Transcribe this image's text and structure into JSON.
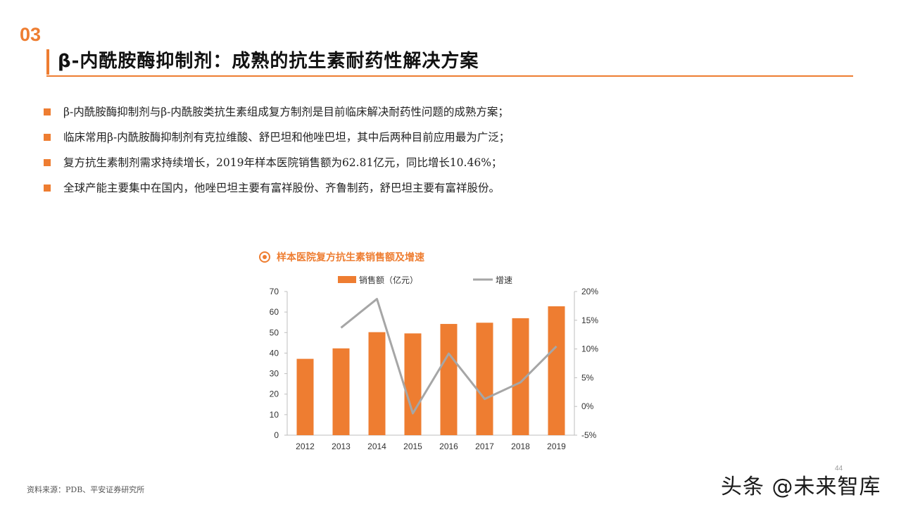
{
  "section_number": "03",
  "title": "β-内酰胺酶抑制剂：成熟的抗生素耐药性解决方案",
  "bullets": [
    "β-内酰胺酶抑制剂与β-内酰胺类抗生素组成复方制剂是目前临床解决耐药性问题的成熟方案；",
    "临床常用β-内酰胺酶抑制剂有克拉维酸、舒巴坦和他唑巴坦，其中后两种目前应用最为广泛；",
    "复方抗生素制剂需求持续增长，2019年样本医院销售额为62.81亿元，同比增长10.46%；",
    "全球产能主要集中在国内，他唑巴坦主要有富祥股份、齐鲁制药，舒巴坦主要有富祥股份。"
  ],
  "chart_data": {
    "type": "bar",
    "title": "样本医院复方抗生素销售额及增速",
    "categories": [
      "2012",
      "2013",
      "2014",
      "2015",
      "2016",
      "2017",
      "2018",
      "2019"
    ],
    "series": [
      {
        "name": "销售额（亿元）",
        "type": "bar",
        "axis": "left",
        "color": "#ee7d31",
        "values": [
          37.2,
          42.3,
          50.2,
          49.6,
          54.2,
          54.8,
          57.0,
          62.81
        ]
      },
      {
        "name": "增速",
        "type": "line",
        "axis": "right",
        "color": "#a6a6a6",
        "values": [
          null,
          13.7,
          18.7,
          -1.2,
          9.2,
          1.3,
          4.2,
          10.46
        ]
      }
    ],
    "y_left": {
      "min": 0,
      "max": 70,
      "ticks": [
        0,
        10,
        20,
        30,
        40,
        50,
        60,
        70
      ]
    },
    "y_right": {
      "min": -5,
      "max": 20,
      "ticks": [
        "-5%",
        "0%",
        "5%",
        "10%",
        "15%",
        "20%"
      ]
    },
    "legend_position": "top",
    "grid": false
  },
  "source": "资料来源：PDB、平安证券研究所",
  "page_number": "44",
  "watermark": "头条 @未来智库",
  "colors": {
    "accent": "#ee7d31",
    "line": "#a6a6a6"
  }
}
